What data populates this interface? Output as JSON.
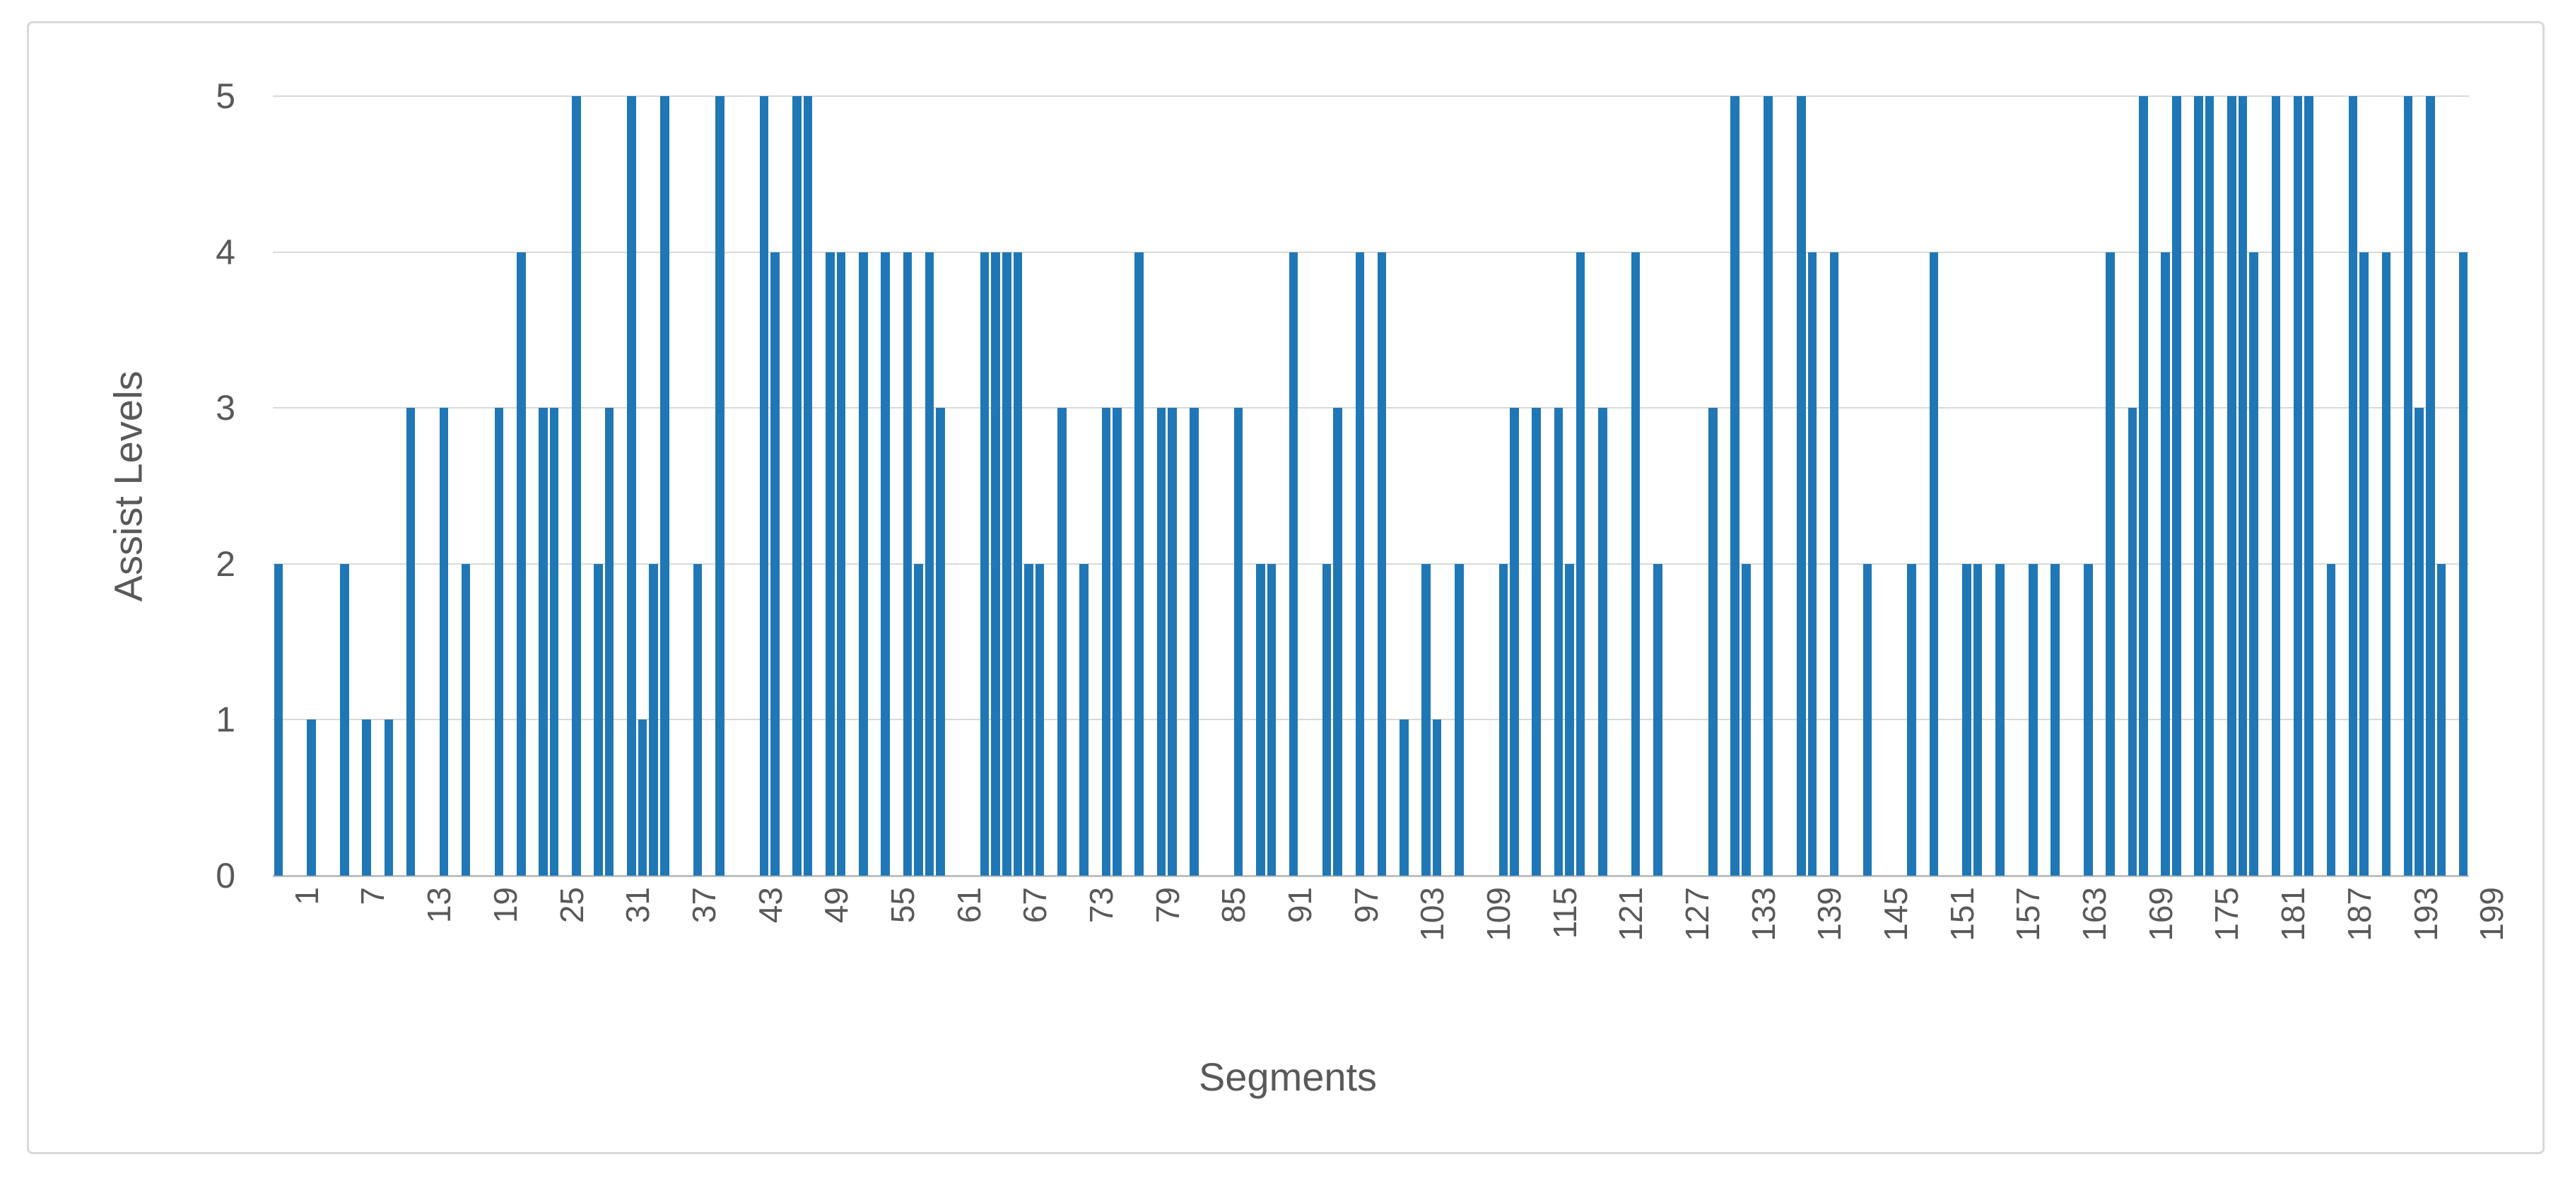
{
  "chart_data": {
    "type": "bar",
    "title": "",
    "xlabel": "Segments",
    "ylabel": "Assist Levels",
    "x_start": 1,
    "x_end": 199,
    "xtick_step": 6,
    "xtick_labels": [
      "1",
      "7",
      "13",
      "19",
      "25",
      "31",
      "37",
      "43",
      "49",
      "55",
      "61",
      "67",
      "73",
      "79",
      "85",
      "91",
      "97",
      "103",
      "109",
      "115",
      "121",
      "127",
      "133",
      "139",
      "145",
      "151",
      "157",
      "163",
      "169",
      "175",
      "181",
      "187",
      "193",
      "199"
    ],
    "yticks": [
      0,
      1,
      2,
      3,
      4,
      5
    ],
    "ylim": [
      0,
      5
    ],
    "grid": "horizontal",
    "legend": "none",
    "categories_note": "segment index 1..199, one bar per segment",
    "values": [
      2,
      0,
      0,
      1,
      0,
      0,
      2,
      0,
      1,
      0,
      1,
      0,
      3,
      0,
      0,
      3,
      0,
      2,
      0,
      0,
      3,
      0,
      4,
      0,
      3,
      3,
      0,
      5,
      0,
      2,
      3,
      0,
      5,
      1,
      2,
      5,
      0,
      0,
      2,
      0,
      5,
      0,
      0,
      0,
      5,
      4,
      0,
      5,
      5,
      0,
      4,
      4,
      0,
      4,
      0,
      4,
      0,
      4,
      2,
      4,
      3,
      0,
      0,
      0,
      4,
      4,
      4,
      4,
      2,
      2,
      0,
      3,
      0,
      2,
      0,
      3,
      3,
      0,
      4,
      0,
      3,
      3,
      0,
      3,
      0,
      0,
      0,
      3,
      0,
      2,
      2,
      0,
      4,
      0,
      0,
      2,
      3,
      0,
      4,
      0,
      4,
      0,
      1,
      0,
      2,
      1,
      0,
      2,
      0,
      0,
      0,
      2,
      3,
      0,
      3,
      0,
      3,
      2,
      4,
      0,
      3,
      0,
      0,
      4,
      0,
      2,
      0,
      0,
      0,
      0,
      3,
      0,
      5,
      2,
      0,
      5,
      0,
      0,
      5,
      4,
      0,
      4,
      0,
      0,
      2,
      0,
      0,
      0,
      2,
      0,
      4,
      0,
      0,
      2,
      2,
      0,
      2,
      0,
      0,
      2,
      0,
      2,
      0,
      0,
      2,
      0,
      4,
      0,
      3,
      5,
      0,
      4,
      5,
      0,
      5,
      5,
      0,
      5,
      5,
      4,
      0,
      5,
      0,
      5,
      5,
      0,
      2,
      0,
      5,
      4,
      0,
      4,
      0,
      5,
      3,
      5,
      2,
      0,
      4
    ]
  },
  "styles": {
    "bar_color": "#2077b6",
    "grid_color": "#d9d9d9",
    "axis_line_color": "#bfbfbf",
    "text_color": "#595959",
    "frame_border_color": "#d9d9d9",
    "background": "#ffffff"
  }
}
